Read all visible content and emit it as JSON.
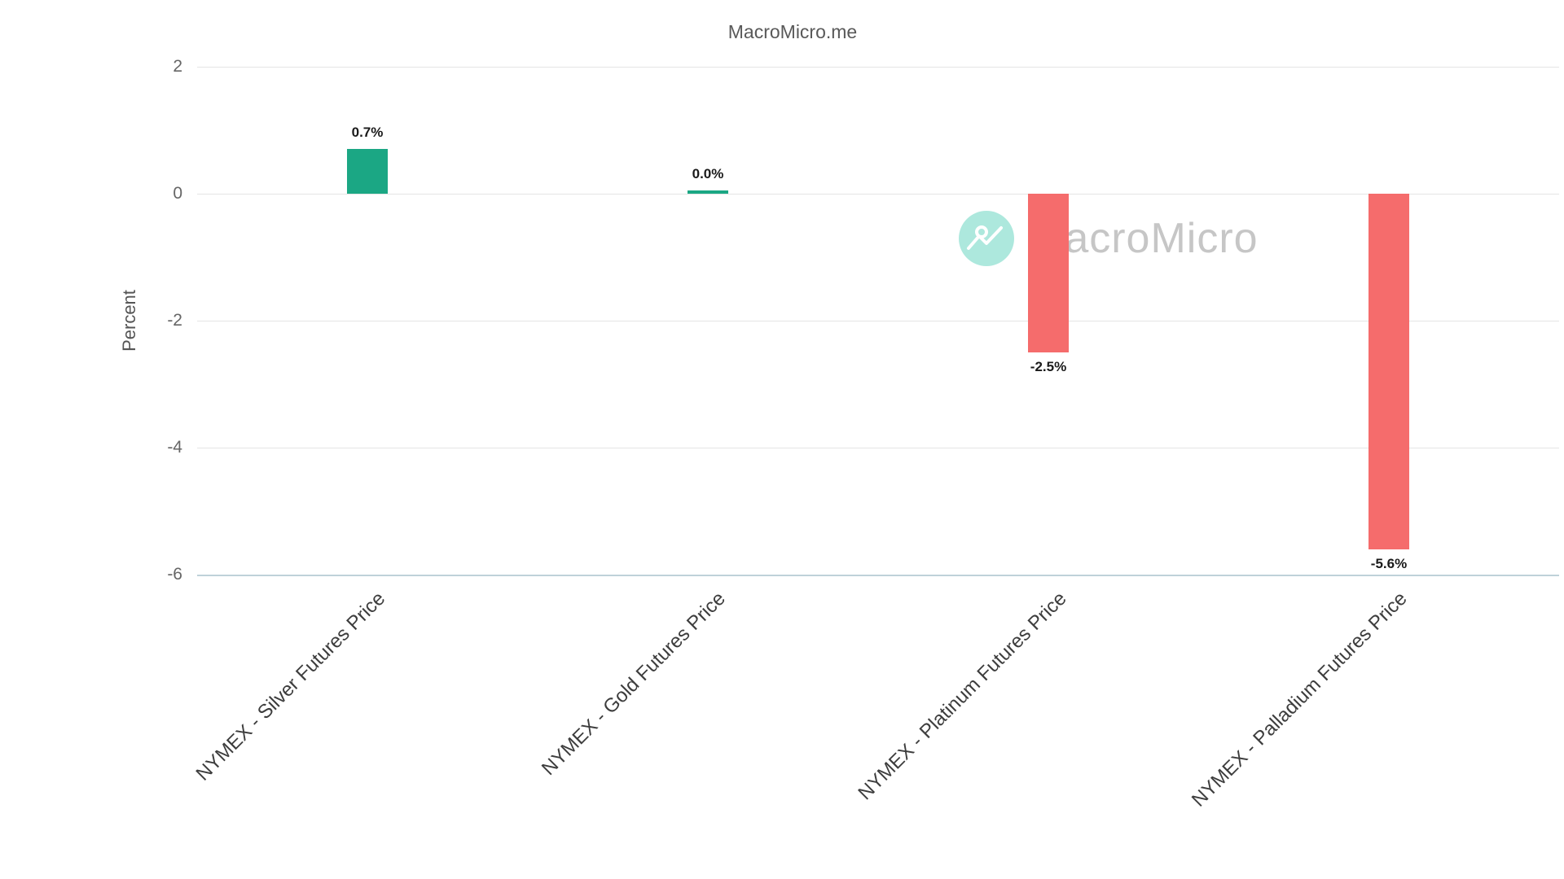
{
  "watermark": {
    "text": "MacroMicro",
    "icon": "macromicro-logo-icon"
  },
  "chart_data": {
    "type": "bar",
    "title": "MacroMicro.me",
    "xlabel": "",
    "ylabel": "Percent",
    "categories": [
      "NYMEX - Silver Futures Price",
      "NYMEX - Gold Futures Price",
      "NYMEX - Platinum Futures Price",
      "NYMEX - Palladium Futures Price"
    ],
    "values": [
      0.7,
      0.0,
      -2.5,
      -5.6
    ],
    "value_labels": [
      "0.7%",
      "0.0%",
      "-2.5%",
      "-5.6%"
    ],
    "ylim": [
      -6,
      2
    ],
    "yticks": [
      2,
      0,
      -2,
      -4,
      -6
    ],
    "grid": true,
    "legend": "none",
    "colors": {
      "positive": "#1BA784",
      "negative": "#F56C6C"
    }
  }
}
